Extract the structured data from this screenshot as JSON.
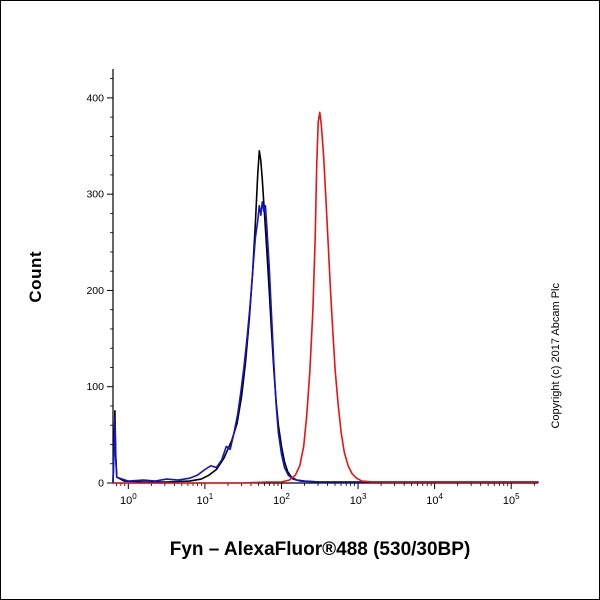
{
  "copyright": "Copyright (c) 2017 Abcam Plc",
  "chart_data": {
    "type": "line",
    "title": "Fyn – AlexaFluor®488 (530/30BP)",
    "xlabel": "",
    "ylabel": "Count",
    "x_scale": "log10",
    "x_range_log10": [
      -0.2,
      5.35
    ],
    "ylim": [
      0,
      430
    ],
    "grid": false,
    "legend": "none",
    "axis_color": "#000000",
    "y_ticks": [
      0,
      100,
      200,
      300,
      400
    ],
    "y_minor_step": 20,
    "x_ticks": [
      {
        "log10": 0,
        "base": "10",
        "exp": "0"
      },
      {
        "log10": 1,
        "base": "10",
        "exp": "1"
      },
      {
        "log10": 2,
        "base": "10",
        "exp": "2"
      },
      {
        "log10": 3,
        "base": "10",
        "exp": "3"
      },
      {
        "log10": 4,
        "base": "10",
        "exp": "4"
      },
      {
        "log10": 5,
        "base": "10",
        "exp": "5"
      }
    ],
    "series": [
      {
        "name": "black-curve",
        "color": "#000000",
        "points": [
          [
            -0.2,
            0
          ],
          [
            -0.185,
            40
          ],
          [
            -0.175,
            75
          ],
          [
            -0.165,
            30
          ],
          [
            -0.15,
            6
          ],
          [
            -0.05,
            2
          ],
          [
            0.2,
            1
          ],
          [
            0.5,
            1
          ],
          [
            0.8,
            2
          ],
          [
            0.95,
            4
          ],
          [
            1.05,
            8
          ],
          [
            1.15,
            14
          ],
          [
            1.25,
            26
          ],
          [
            1.35,
            44
          ],
          [
            1.42,
            62
          ],
          [
            1.48,
            90
          ],
          [
            1.53,
            125
          ],
          [
            1.58,
            170
          ],
          [
            1.62,
            215
          ],
          [
            1.66,
            270
          ],
          [
            1.69,
            320
          ],
          [
            1.71,
            345
          ],
          [
            1.73,
            335
          ],
          [
            1.75,
            315
          ],
          [
            1.78,
            278
          ],
          [
            1.81,
            240
          ],
          [
            1.84,
            200
          ],
          [
            1.87,
            158
          ],
          [
            1.9,
            118
          ],
          [
            1.93,
            85
          ],
          [
            1.96,
            60
          ],
          [
            2.0,
            38
          ],
          [
            2.04,
            22
          ],
          [
            2.08,
            12
          ],
          [
            2.13,
            6
          ],
          [
            2.2,
            3
          ],
          [
            2.3,
            2
          ],
          [
            2.5,
            1
          ],
          [
            3.0,
            1
          ],
          [
            4.0,
            1
          ],
          [
            5.35,
            1
          ]
        ]
      },
      {
        "name": "blue-curve",
        "color": "#1414c8",
        "points": [
          [
            -0.2,
            0
          ],
          [
            -0.185,
            35
          ],
          [
            -0.175,
            68
          ],
          [
            -0.165,
            25
          ],
          [
            -0.15,
            6
          ],
          [
            0.0,
            2
          ],
          [
            0.2,
            3
          ],
          [
            0.35,
            2
          ],
          [
            0.5,
            4
          ],
          [
            0.65,
            3
          ],
          [
            0.8,
            5
          ],
          [
            0.9,
            8
          ],
          [
            1.0,
            14
          ],
          [
            1.08,
            18
          ],
          [
            1.15,
            16
          ],
          [
            1.22,
            24
          ],
          [
            1.28,
            38
          ],
          [
            1.33,
            35
          ],
          [
            1.38,
            52
          ],
          [
            1.43,
            72
          ],
          [
            1.47,
            95
          ],
          [
            1.51,
            120
          ],
          [
            1.55,
            150
          ],
          [
            1.59,
            185
          ],
          [
            1.63,
            225
          ],
          [
            1.66,
            255
          ],
          [
            1.69,
            272
          ],
          [
            1.71,
            288
          ],
          [
            1.73,
            278
          ],
          [
            1.75,
            292
          ],
          [
            1.77,
            282
          ],
          [
            1.79,
            288
          ],
          [
            1.81,
            265
          ],
          [
            1.84,
            225
          ],
          [
            1.87,
            175
          ],
          [
            1.9,
            125
          ],
          [
            1.93,
            82
          ],
          [
            1.96,
            52
          ],
          [
            2.0,
            30
          ],
          [
            2.04,
            16
          ],
          [
            2.09,
            8
          ],
          [
            2.15,
            4
          ],
          [
            2.25,
            2
          ],
          [
            2.5,
            1
          ],
          [
            3.5,
            1
          ],
          [
            5.35,
            1
          ]
        ]
      },
      {
        "name": "red-curve",
        "color": "#e81212",
        "points": [
          [
            -0.2,
            0
          ],
          [
            0.5,
            0
          ],
          [
            1.0,
            0
          ],
          [
            1.5,
            0
          ],
          [
            1.8,
            1
          ],
          [
            2.0,
            1
          ],
          [
            2.1,
            3
          ],
          [
            2.18,
            8
          ],
          [
            2.24,
            18
          ],
          [
            2.29,
            38
          ],
          [
            2.33,
            70
          ],
          [
            2.37,
            115
          ],
          [
            2.41,
            180
          ],
          [
            2.44,
            255
          ],
          [
            2.46,
            330
          ],
          [
            2.48,
            375
          ],
          [
            2.5,
            385
          ],
          [
            2.52,
            372
          ],
          [
            2.55,
            340
          ],
          [
            2.58,
            295
          ],
          [
            2.61,
            248
          ],
          [
            2.64,
            200
          ],
          [
            2.67,
            158
          ],
          [
            2.7,
            118
          ],
          [
            2.74,
            82
          ],
          [
            2.78,
            52
          ],
          [
            2.82,
            32
          ],
          [
            2.87,
            18
          ],
          [
            2.92,
            10
          ],
          [
            2.98,
            5
          ],
          [
            3.05,
            2
          ],
          [
            3.2,
            1
          ],
          [
            3.5,
            1
          ],
          [
            4.0,
            1
          ],
          [
            5.35,
            1
          ]
        ]
      }
    ]
  }
}
